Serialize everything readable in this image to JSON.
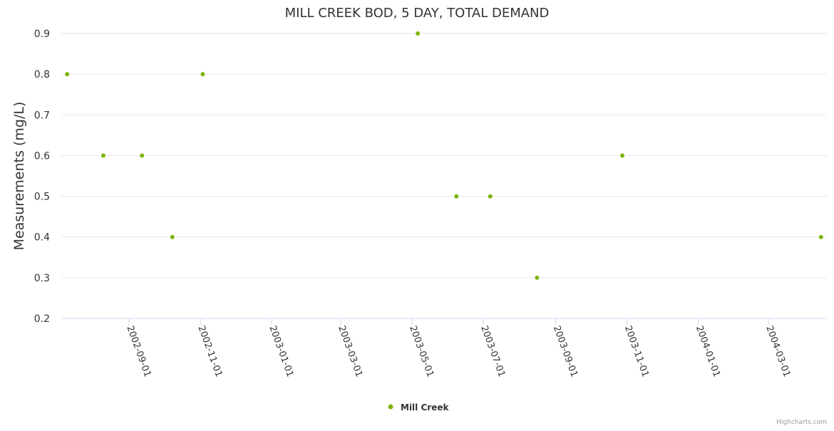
{
  "chart_data": {
    "type": "scatter",
    "title": "MILL CREEK BOD, 5 DAY, TOTAL DEMAND",
    "xlabel": "",
    "ylabel": "Measurements (mg/L)",
    "ylim": [
      0.2,
      0.9
    ],
    "yticks": [
      "0.2",
      "0.3",
      "0.4",
      "0.5",
      "0.6",
      "0.7",
      "0.8",
      "0.9"
    ],
    "xlim": [
      "2002-07-05",
      "2004-04-20"
    ],
    "xticks": [
      "2002-09-01",
      "2002-11-01",
      "2003-01-01",
      "2003-03-01",
      "2003-05-01",
      "2003-07-01",
      "2003-09-01",
      "2003-11-01",
      "2004-01-01",
      "2004-03-01"
    ],
    "grid": true,
    "legend_position": "bottom-center",
    "series": [
      {
        "name": "Mill Creek",
        "color": "#7cb50a",
        "points": [
          {
            "x": "2002-07-10",
            "y": 0.8
          },
          {
            "x": "2002-08-10",
            "y": 0.6
          },
          {
            "x": "2002-09-12",
            "y": 0.6
          },
          {
            "x": "2002-10-08",
            "y": 0.4
          },
          {
            "x": "2002-11-03",
            "y": 0.8
          },
          {
            "x": "2003-05-06",
            "y": 0.9
          },
          {
            "x": "2003-06-08",
            "y": 0.5
          },
          {
            "x": "2003-07-07",
            "y": 0.5
          },
          {
            "x": "2003-08-16",
            "y": 0.3
          },
          {
            "x": "2003-10-28",
            "y": 0.6
          },
          {
            "x": "2004-04-15",
            "y": 0.4
          }
        ]
      }
    ]
  },
  "credits": "Highcharts.com"
}
